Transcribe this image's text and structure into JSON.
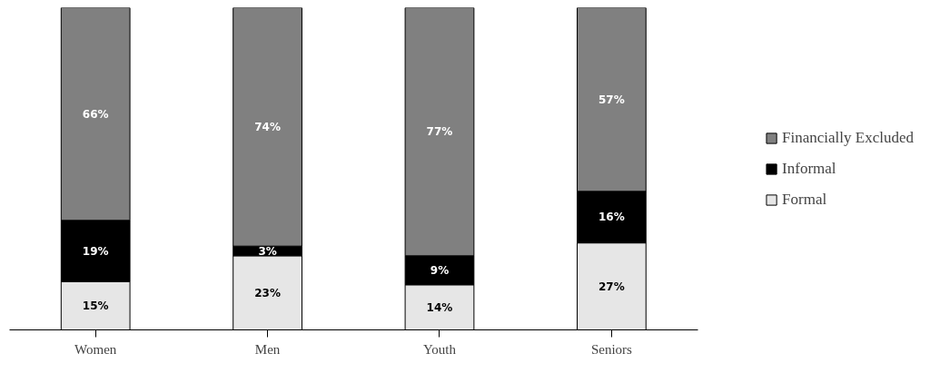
{
  "chart_data": {
    "type": "bar",
    "stacked": true,
    "categories": [
      "Women",
      "Men",
      "Youth",
      "Seniors"
    ],
    "series": [
      {
        "name": "Formal",
        "color": "#e6e6e6",
        "values": [
          15,
          23,
          14,
          27
        ],
        "value_labels": [
          "15%",
          "23%",
          "14%",
          "27%"
        ]
      },
      {
        "name": "Informal",
        "color": "#000000",
        "values": [
          19,
          3,
          9,
          16
        ],
        "value_labels": [
          "19%",
          "3%",
          "9%",
          "16%"
        ]
      },
      {
        "name": "Financially Excluded",
        "color": "#808080",
        "values": [
          66,
          74,
          77,
          57
        ],
        "value_labels": [
          "66%",
          "74%",
          "77%",
          "57%"
        ]
      }
    ],
    "legend": "right",
    "grid": false,
    "tick_labels": "x"
  }
}
